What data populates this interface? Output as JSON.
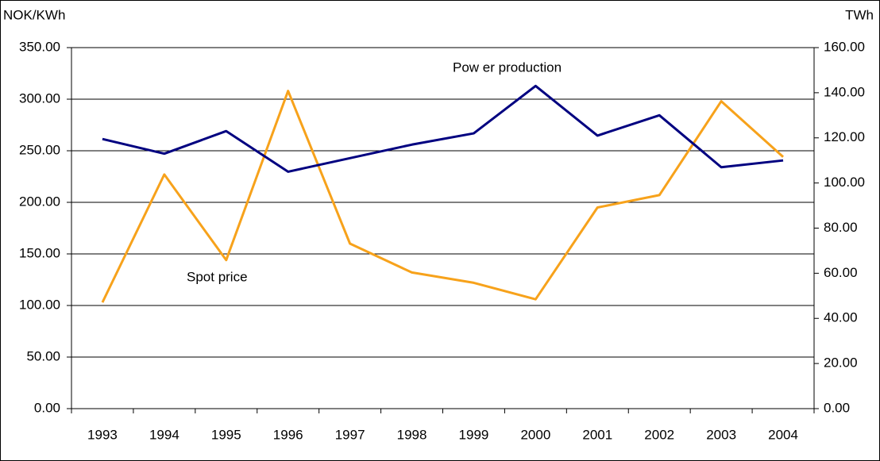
{
  "chart_data": {
    "type": "line",
    "y_label": "NOK/KWh",
    "y2_label": "TWh",
    "categories": [
      "1993",
      "1994",
      "1995",
      "1996",
      "1997",
      "1998",
      "1999",
      "2000",
      "2001",
      "2002",
      "2003",
      "2004"
    ],
    "series": [
      {
        "name": "Spot price",
        "color": "#f7a21b",
        "values": [
          103,
          227,
          144,
          308,
          160,
          132,
          122,
          106,
          195,
          207,
          298,
          244
        ]
      },
      {
        "name": "Pow er production",
        "color": "#000080",
        "axis": "y2",
        "values": [
          119.5,
          113,
          123,
          105,
          111,
          117,
          122,
          143,
          121,
          130,
          107,
          110
        ]
      }
    ],
    "ylim": [
      0,
      350
    ],
    "yticks": [
      {
        "value": 0,
        "label": "0.00"
      },
      {
        "value": 50,
        "label": "50.00"
      },
      {
        "value": 100,
        "label": "100.00"
      },
      {
        "value": 150,
        "label": "150.00"
      },
      {
        "value": 200,
        "label": "200.00"
      },
      {
        "value": 250,
        "label": "250.00"
      },
      {
        "value": 300,
        "label": "300.00"
      },
      {
        "value": 350,
        "label": "350.00"
      }
    ],
    "y2lim": [
      0,
      160
    ],
    "y2ticks": [
      {
        "value": 0,
        "label": "0.00"
      },
      {
        "value": 20,
        "label": "20.00"
      },
      {
        "value": 40,
        "label": "40.00"
      },
      {
        "value": 60,
        "label": "60.00"
      },
      {
        "value": 80,
        "label": "80.00"
      },
      {
        "value": 100,
        "label": "100.00"
      },
      {
        "value": 120,
        "label": "120.00"
      },
      {
        "value": 140,
        "label": "140.00"
      },
      {
        "value": 160,
        "label": "160.00"
      }
    ],
    "grid": true
  }
}
